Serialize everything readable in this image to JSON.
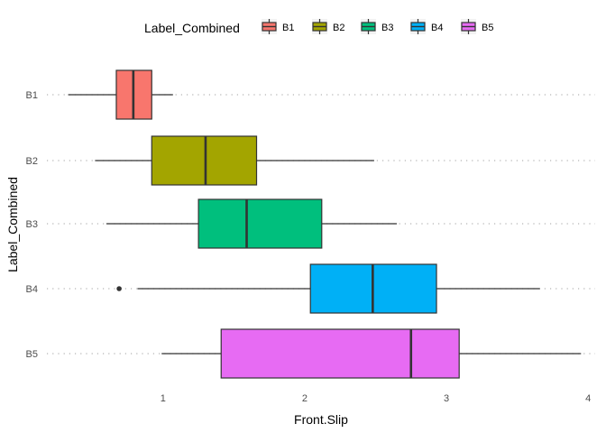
{
  "chart_data": {
    "type": "boxplot",
    "orientation": "horizontal",
    "xlabel": "Front.Slip",
    "ylabel": "Label_Combined",
    "xlim": [
      0.18,
      4.05
    ],
    "x_ticks": [
      1,
      2,
      3,
      4
    ],
    "grid": "horizontal dotted at each category",
    "legend": {
      "title": "Label_Combined",
      "position": "top"
    },
    "categories": [
      "B1",
      "B2",
      "B3",
      "B4",
      "B5"
    ],
    "series": [
      {
        "name": "B1",
        "color": "#F8766D",
        "whisker_low": 0.33,
        "q1": 0.67,
        "median": 0.79,
        "q3": 0.92,
        "whisker_high": 1.07,
        "outliers": []
      },
      {
        "name": "B2",
        "color": "#A3A500",
        "whisker_low": 0.52,
        "q1": 0.92,
        "median": 1.3,
        "q3": 1.66,
        "whisker_high": 2.49,
        "outliers": []
      },
      {
        "name": "B3",
        "color": "#00BF7D",
        "whisker_low": 0.6,
        "q1": 1.25,
        "median": 1.59,
        "q3": 2.12,
        "whisker_high": 2.65,
        "outliers": []
      },
      {
        "name": "B4",
        "color": "#00B0F6",
        "whisker_low": 0.82,
        "q1": 2.04,
        "median": 2.48,
        "q3": 2.93,
        "whisker_high": 3.66,
        "outliers": [
          0.69
        ]
      },
      {
        "name": "B5",
        "color": "#E76BF3",
        "whisker_low": 0.99,
        "q1": 1.41,
        "median": 2.75,
        "q3": 3.09,
        "whisker_high": 3.95,
        "outliers": []
      }
    ]
  }
}
